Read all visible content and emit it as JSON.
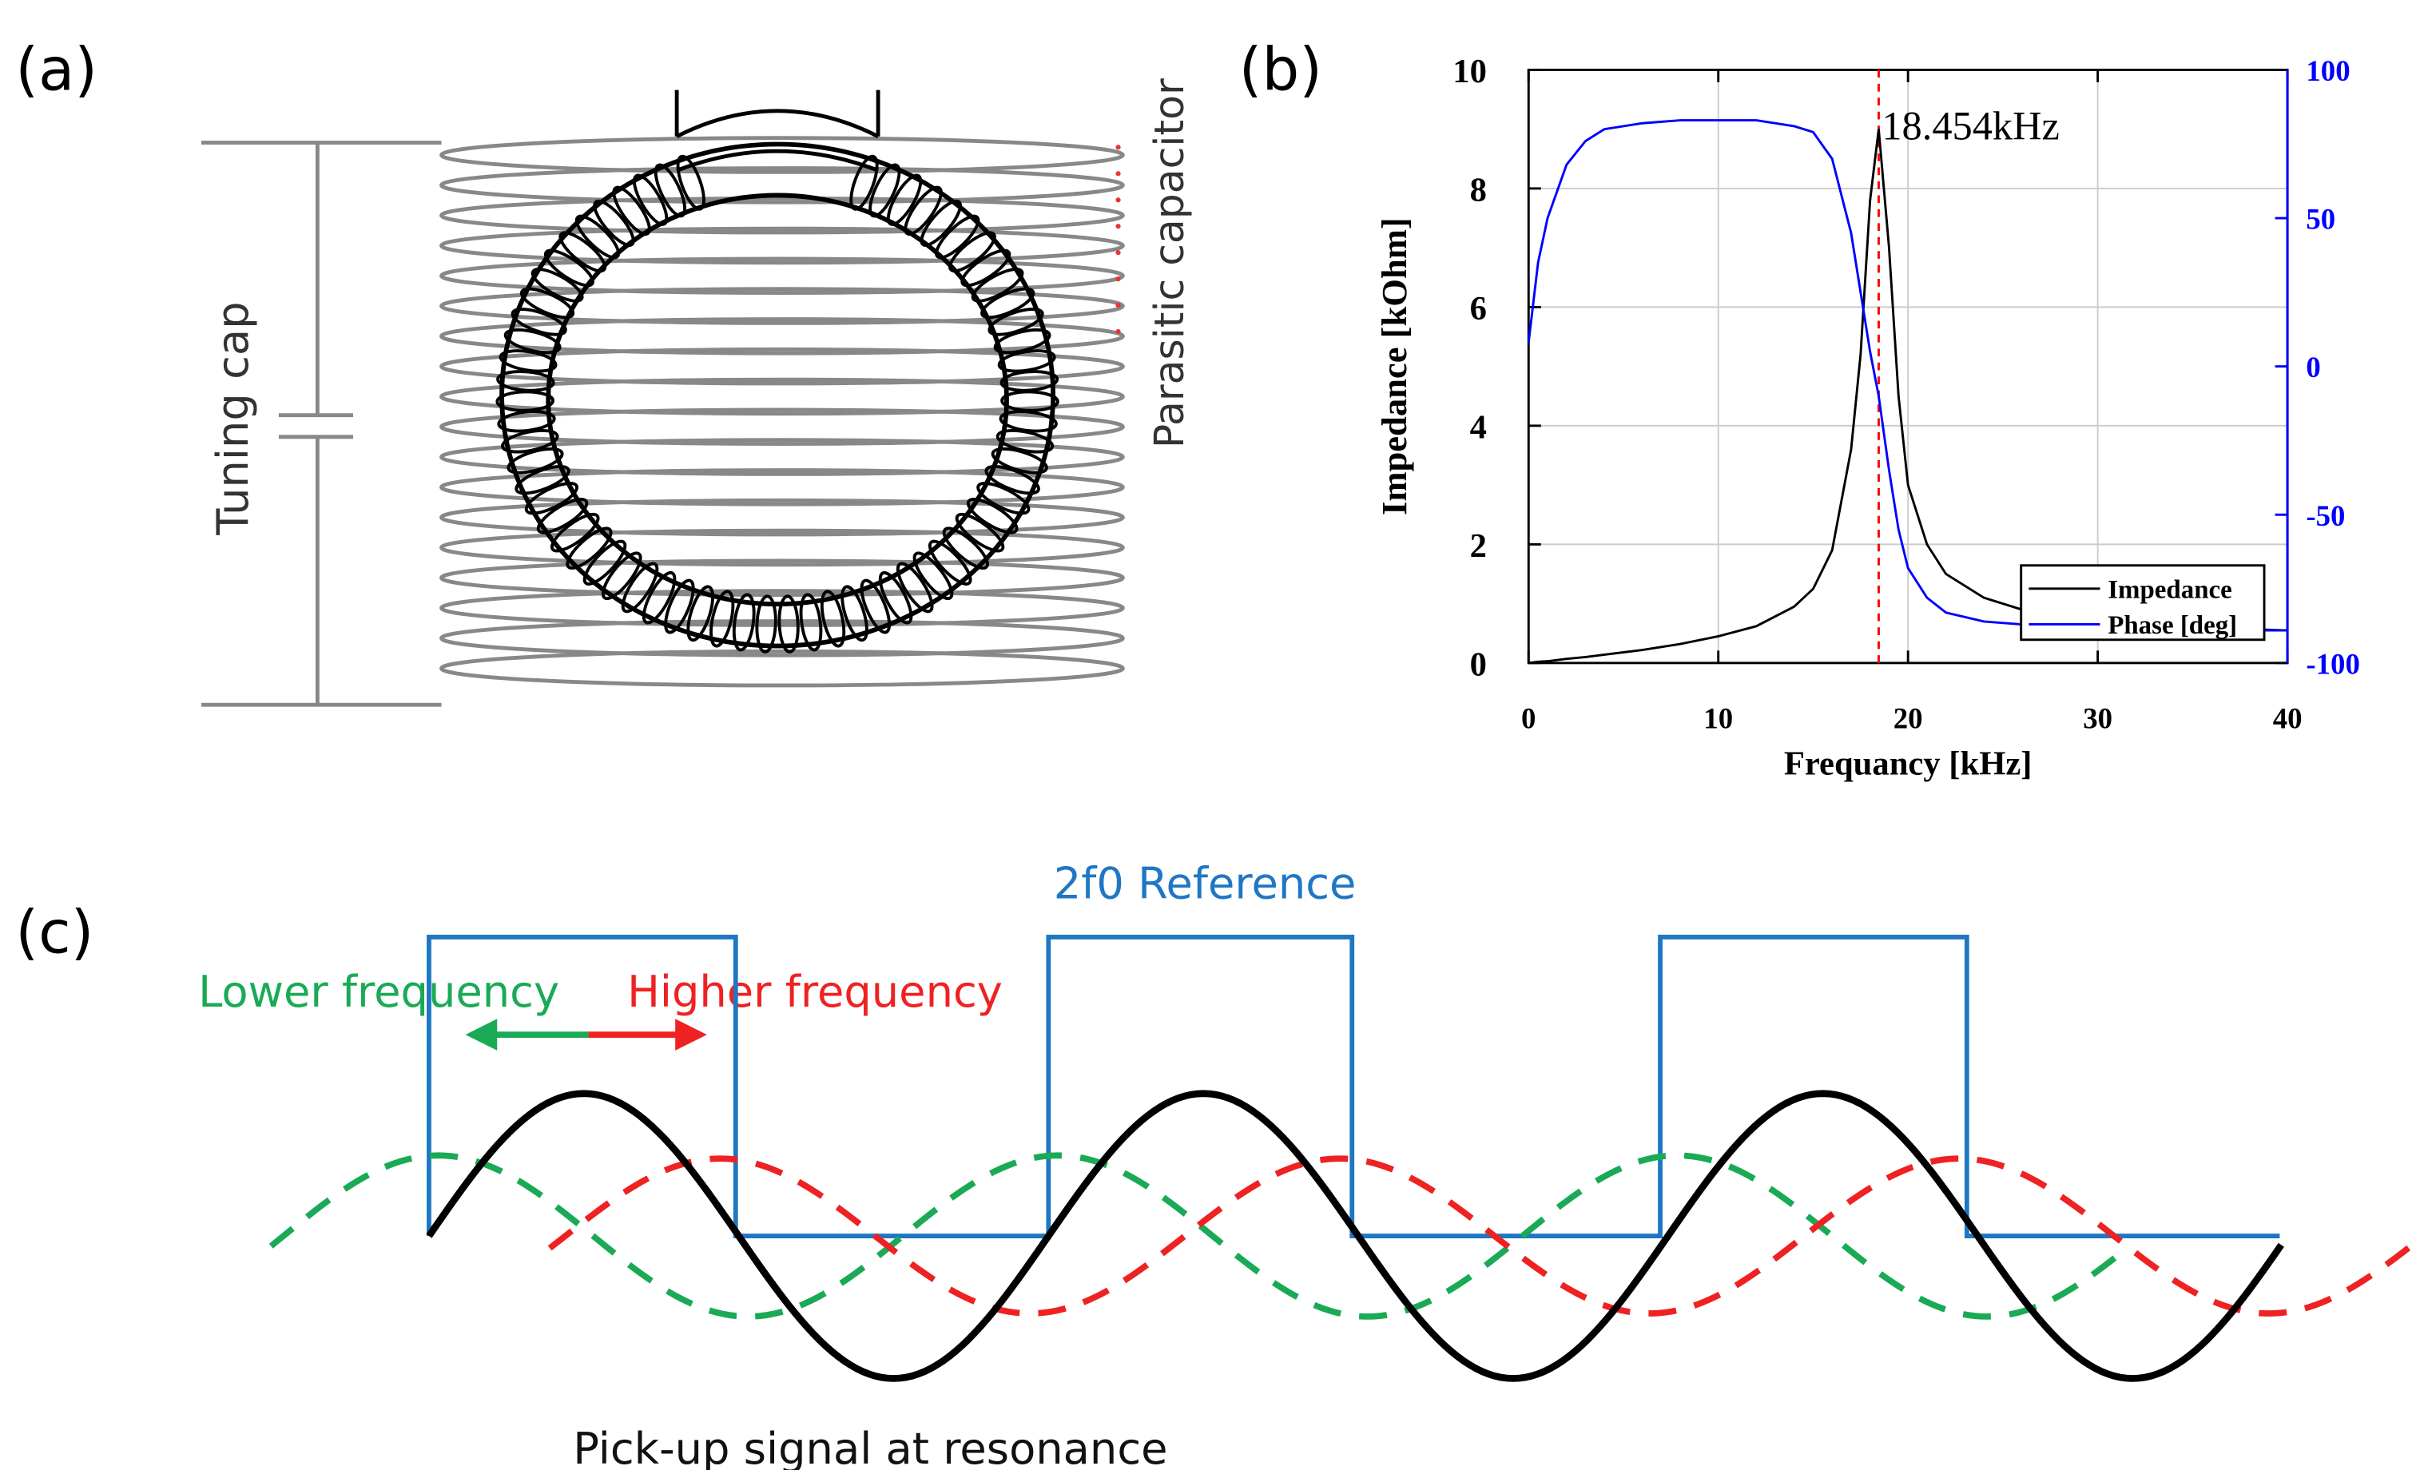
{
  "panels": {
    "a": {
      "label": "(a)",
      "tuning_cap": "Tuning cap",
      "parasitic": "Parasitic capacitor"
    },
    "b": {
      "label": "(b)"
    },
    "c": {
      "label": "(c)",
      "reference": "2f0 Reference",
      "lower": "Lower frequency",
      "higher": "Higher frequency",
      "pickup": "Pick-up signal at resonance"
    }
  },
  "chart_data": {
    "type": "line",
    "xlabel": "Frequancy [kHz]",
    "ylabel": "Impedance [kOhm]",
    "x": [
      0,
      0.5,
      1,
      2,
      3,
      4,
      6,
      8,
      10,
      12,
      14,
      15,
      16,
      17,
      17.5,
      18,
      18.454,
      19,
      19.5,
      20,
      21,
      22,
      24,
      26,
      28,
      30,
      35,
      40
    ],
    "series": [
      {
        "name": "Impedance",
        "color": "#000000",
        "values": [
          0,
          0.02,
          0.03,
          0.07,
          0.1,
          0.14,
          0.22,
          0.32,
          0.45,
          0.62,
          0.95,
          1.25,
          1.9,
          3.6,
          5.2,
          7.8,
          9.0,
          7.0,
          4.5,
          3.0,
          2.0,
          1.5,
          1.1,
          0.9,
          0.8,
          0.72,
          0.6,
          0.55
        ]
      },
      {
        "name": "Phase [deg]",
        "color": "#0000ff",
        "axis": "y2",
        "values": [
          8,
          35,
          50,
          68,
          76,
          80,
          82,
          83,
          83,
          83,
          81,
          79,
          70,
          45,
          25,
          5,
          -10,
          -35,
          -55,
          -68,
          -78,
          -83,
          -86,
          -87,
          -88,
          -88,
          -89,
          -89
        ]
      }
    ],
    "xlim": [
      0,
      40
    ],
    "xticks": [
      0,
      10,
      20,
      30,
      40
    ],
    "ylim": [
      0,
      10
    ],
    "yticks": [
      0,
      2,
      4,
      6,
      8,
      10
    ],
    "y2lim": [
      -100,
      100
    ],
    "y2ticks": [
      -100,
      -50,
      0,
      50,
      100
    ],
    "grid": true,
    "legend": "lower right",
    "annotation": {
      "text": "18.454kHz",
      "x": 18.454,
      "color": "#ff0000"
    }
  }
}
